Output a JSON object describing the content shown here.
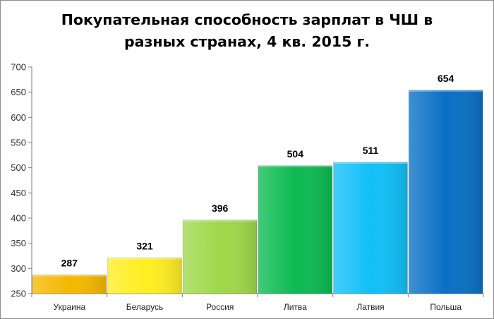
{
  "title": {
    "line1": "Покупательная способность зарплат в ЧШ в",
    "line2": "разных странах, 4 кв. 2015 г."
  },
  "chart_data": {
    "type": "bar",
    "categories": [
      "Украина",
      "Беларусь",
      "Россия",
      "Литва",
      "Латвия",
      "Польша"
    ],
    "values": [
      287,
      321,
      396,
      504,
      511,
      654
    ],
    "ylim": [
      250,
      700
    ],
    "yticks": [
      250,
      300,
      350,
      400,
      450,
      500,
      550,
      600,
      650,
      700
    ],
    "bar_colors": [
      "#f5b800",
      "#ffee22",
      "#9fd84a",
      "#0dba52",
      "#12bff7",
      "#0a70c6"
    ],
    "grid": false,
    "legend": "none"
  }
}
